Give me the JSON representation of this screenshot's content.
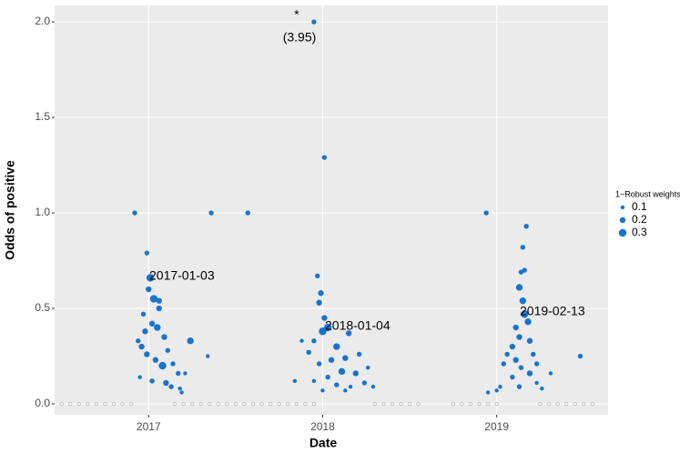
{
  "chart_data": {
    "type": "scatter",
    "x_label": "Date",
    "y_label": "Odds of positive",
    "xlim": [
      2016.46,
      2019.64
    ],
    "ylim": [
      -0.057,
      2.086
    ],
    "xticks": [
      2017,
      2018,
      2019
    ],
    "yticks": [
      {
        "value": 0,
        "label": "0.0"
      },
      0.5,
      {
        "value": 1,
        "label": "1.0"
      },
      1.5,
      {
        "value": 2,
        "label": "2.0"
      }
    ],
    "grid": true,
    "color": "#1874cd",
    "zero_color": "#bdbdbd",
    "points": {
      "x": [
        2016.92,
        2017.36,
        2017.57,
        2017.95,
        2018.01,
        2018.94,
        2019.17,
        2019.48,
        2017.34,
        2016.99,
        2017.01,
        2017.0,
        2017.03,
        2017.06,
        2016.97,
        2017.02,
        2017.05,
        2016.98,
        2016.96,
        2017.09,
        2017.11,
        2017.04,
        2017.08,
        2017.14,
        2017.24,
        2016.94,
        2016.95,
        2017.17,
        2017.1,
        2017.13,
        2017.18,
        2017.21,
        2017.06,
        2016.99,
        2017.02,
        2017.19,
        2017.97,
        2017.99,
        2017.98,
        2018.01,
        2018.0,
        2018.03,
        2017.95,
        2017.88,
        2018.08,
        2017.92,
        2018.05,
        2018.13,
        2017.98,
        2018.11,
        2018.19,
        2018.03,
        2018.08,
        2018.16,
        2018.24,
        2018.26,
        2018.21,
        2017.95,
        2018.0,
        2018.13,
        2018.29,
        2017.84,
        2018.15,
        2019.15,
        2019.16,
        2019.14,
        2019.13,
        2019.15,
        2019.16,
        2019.18,
        2019.11,
        2019.13,
        2019.09,
        2019.19,
        2019.06,
        2019.21,
        2019.11,
        2019.04,
        2019.14,
        2019.19,
        2019.09,
        2019.23,
        2019.02,
        2019.0,
        2019.13,
        2019.26,
        2019.31,
        2018.95,
        2019.23
      ],
      "y": [
        1.0,
        1.0,
        1.0,
        2.0,
        1.29,
        1.0,
        0.93,
        0.25,
        0.25,
        0.79,
        0.66,
        0.6,
        0.55,
        0.54,
        0.47,
        0.42,
        0.4,
        0.38,
        0.3,
        0.35,
        0.28,
        0.23,
        0.2,
        0.21,
        0.33,
        0.33,
        0.14,
        0.16,
        0.11,
        0.09,
        0.08,
        0.16,
        0.5,
        0.26,
        0.12,
        0.06,
        0.67,
        0.58,
        0.53,
        0.45,
        0.38,
        0.4,
        0.33,
        0.33,
        0.3,
        0.27,
        0.23,
        0.24,
        0.21,
        0.17,
        0.16,
        0.14,
        0.1,
        0.09,
        0.11,
        0.19,
        0.26,
        0.12,
        0.07,
        0.07,
        0.09,
        0.12,
        0.37,
        0.82,
        0.7,
        0.69,
        0.61,
        0.54,
        0.47,
        0.43,
        0.4,
        0.35,
        0.3,
        0.33,
        0.26,
        0.26,
        0.23,
        0.21,
        0.19,
        0.16,
        0.14,
        0.11,
        0.09,
        0.07,
        0.09,
        0.08,
        0.16,
        0.06,
        0.21
      ],
      "size": [
        0.15,
        0.15,
        0.15,
        0.15,
        0.15,
        0.15,
        0.15,
        0.15,
        0.1,
        0.15,
        0.3,
        0.2,
        0.3,
        0.2,
        0.15,
        0.2,
        0.25,
        0.2,
        0.2,
        0.2,
        0.15,
        0.2,
        0.3,
        0.15,
        0.25,
        0.15,
        0.1,
        0.15,
        0.2,
        0.15,
        0.1,
        0.1,
        0.2,
        0.2,
        0.15,
        0.1,
        0.15,
        0.2,
        0.2,
        0.2,
        0.3,
        0.3,
        0.15,
        0.1,
        0.25,
        0.15,
        0.2,
        0.2,
        0.15,
        0.25,
        0.2,
        0.15,
        0.15,
        0.1,
        0.15,
        0.1,
        0.15,
        0.1,
        0.1,
        0.1,
        0.1,
        0.1,
        0.2,
        0.15,
        0.15,
        0.15,
        0.25,
        0.25,
        0.3,
        0.25,
        0.2,
        0.2,
        0.2,
        0.2,
        0.15,
        0.15,
        0.2,
        0.15,
        0.15,
        0.2,
        0.15,
        0.1,
        0.1,
        0.1,
        0.15,
        0.1,
        0.1,
        0.1,
        0.15
      ]
    },
    "zero_points": {
      "x": [
        2016.5,
        2016.55,
        2016.6,
        2016.65,
        2016.7,
        2016.75,
        2016.8,
        2016.85,
        2016.9,
        2017.15,
        2017.2,
        2017.25,
        2017.3,
        2017.35,
        2017.4,
        2017.45,
        2017.5,
        2017.55,
        2017.6,
        2017.65,
        2017.7,
        2017.75,
        2017.8,
        2017.85,
        2017.9,
        2017.95,
        2018.3,
        2018.35,
        2018.4,
        2018.45,
        2018.5,
        2018.55,
        2018.75,
        2018.8,
        2018.85,
        2018.9,
        2018.95,
        2019.0,
        2019.25,
        2019.3,
        2019.35,
        2019.4,
        2019.45,
        2019.5,
        2019.55
      ],
      "y": [
        0,
        0,
        0,
        0,
        0,
        0,
        0,
        0,
        0,
        0,
        0,
        0,
        0,
        0,
        0,
        0,
        0,
        0,
        0,
        0,
        0,
        0,
        0,
        0,
        0,
        0,
        0,
        0,
        0,
        0,
        0,
        0,
        0,
        0,
        0,
        0,
        0,
        0,
        0,
        0,
        0,
        0,
        0,
        0,
        0
      ]
    },
    "size_legend": {
      "title": "1−Robust weights",
      "values": [
        0.1,
        0.2,
        0.3
      ]
    },
    "annotations": [
      "*",
      "(3.95)",
      "2017‑01‑03",
      "2018‑01‑04",
      "2019‑02‑13"
    ]
  }
}
